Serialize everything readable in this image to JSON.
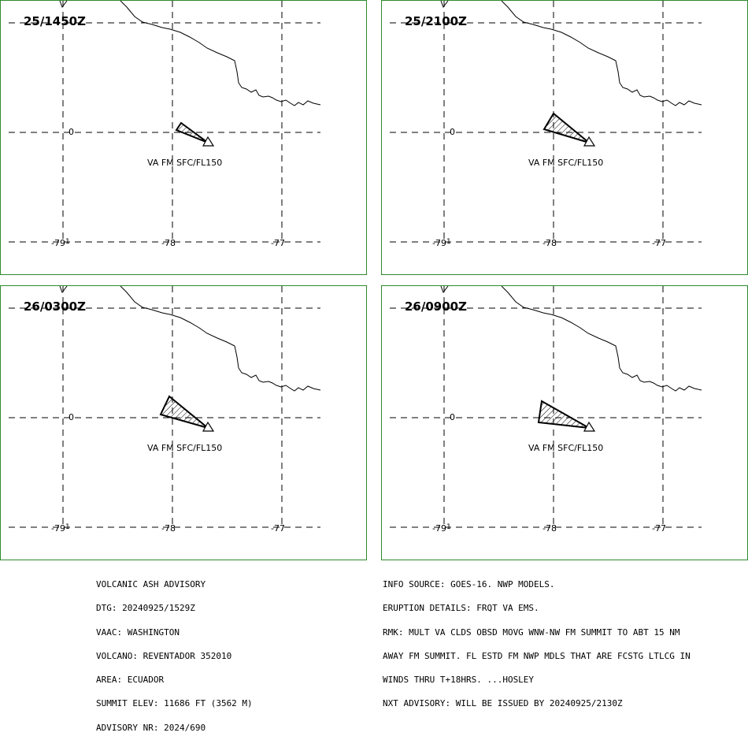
{
  "panels": [
    {
      "time": "25/1450Z",
      "label": "VA FM SFC/FL150"
    },
    {
      "time": "25/2100Z",
      "label": "VA FM SFC/FL150"
    },
    {
      "time": "26/0300Z",
      "label": "VA FM SFC/FL150"
    },
    {
      "time": "26/0900Z",
      "label": "VA FM SFC/FL150"
    }
  ],
  "axis": {
    "lat_label": "0",
    "lon_labels": [
      "-79",
      "-78",
      "-77"
    ],
    "lon_tick_note": "1"
  },
  "advisory_left": {
    "line1": "VOLCANIC ASH ADVISORY",
    "line2": "DTG: 20240925/1529Z",
    "line3": "VAAC: WASHINGTON",
    "line4": "VOLCANO: REVENTADOR 352010",
    "line5": "AREA: ECUADOR",
    "line6": "SUMMIT ELEV: 11686 FT (3562 M)",
    "line7": "ADVISORY NR: 2024/690"
  },
  "advisory_right": {
    "line1": "INFO SOURCE: GOES-16. NWP MODELS.",
    "line2": "ERUPTION DETAILS: FRQT VA EMS.",
    "line3": "RMK: MULT VA CLDS OBSD MOVG WNW-NW FM SUMMIT TO ABT 15 NM",
    "line4": "AWAY FM SUMMIT. FL ESTD FM NWP MDLS THAT ARE FCSTG LTLCG IN",
    "line5": "WINDS THRU T+18HRS. ...HOSLEY",
    "line6": "NXT ADVISORY: WILL BE ISSUED BY 20240925/2130Z"
  },
  "colors": {
    "frame": "#2e8b2e",
    "lines": "#000000"
  },
  "icons": [
    "volcano-triangle-icon",
    "ash-cloud-polygon"
  ]
}
